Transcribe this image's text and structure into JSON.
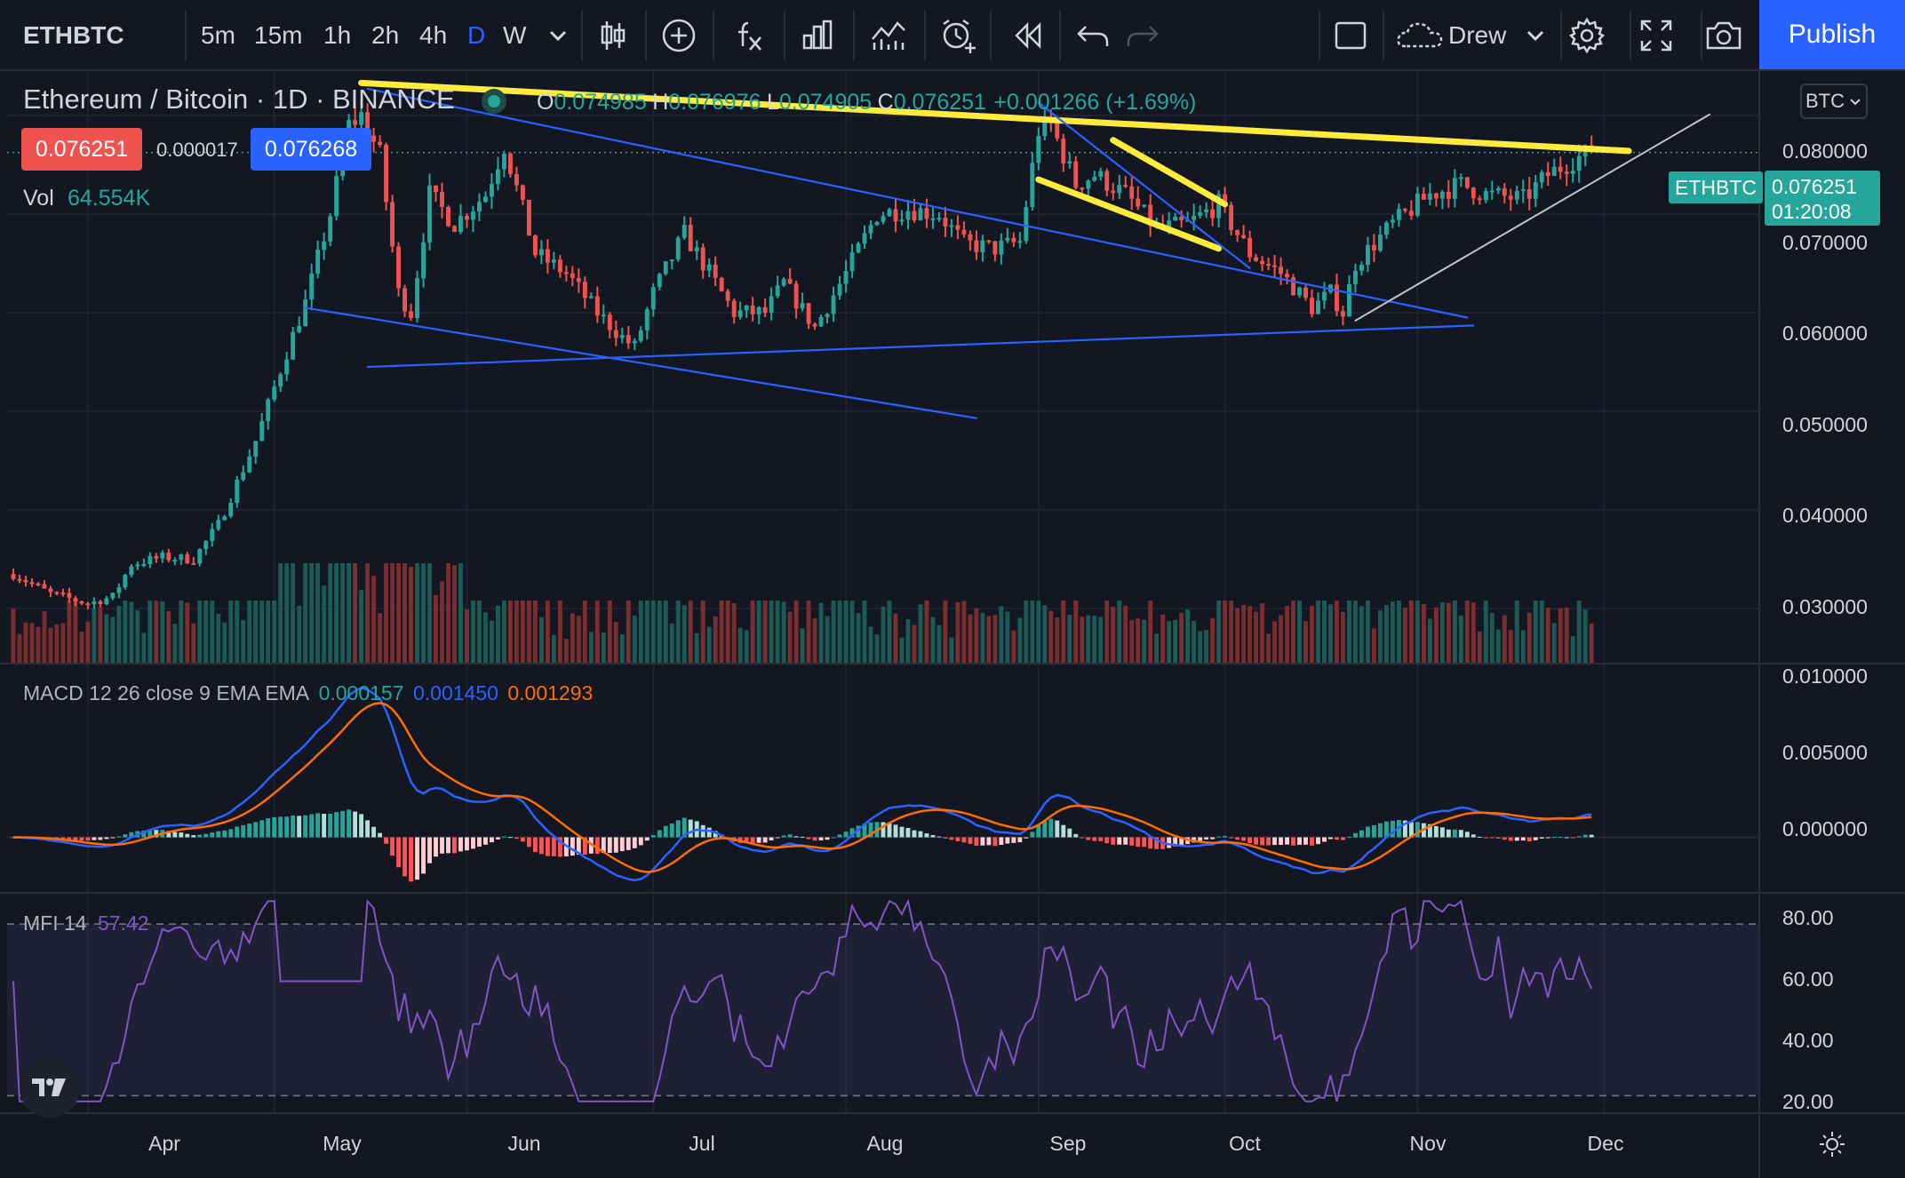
{
  "toolbar": {
    "symbol": "ETHBTC",
    "intervals": [
      "5m",
      "15m",
      "1h",
      "2h",
      "4h",
      "D",
      "W"
    ],
    "active_interval": "D",
    "drew_label": "Drew",
    "publish_label": "Publish"
  },
  "legend": {
    "title": "Ethereum / Bitcoin · 1D · BINANCE",
    "o_label": "O",
    "o_value": "0.074985",
    "h_label": "H",
    "h_value": "0.076976",
    "l_label": "L",
    "l_value": "0.074905",
    "c_label": "C",
    "c_value": "0.076251",
    "change": "+0.001266 (+1.69%)",
    "sell_price": "0.076251",
    "spread": "0.000017",
    "buy_price": "0.076268",
    "vol_label": "Vol",
    "vol_value": "64.554K"
  },
  "currency_selector": "BTC",
  "price_tag": {
    "symbol": "ETHBTC",
    "price": "0.076251",
    "countdown": "01:20:08"
  },
  "price_axis": [
    "0.080000",
    "0.070000",
    "0.060000",
    "0.050000",
    "0.040000",
    "0.030000"
  ],
  "macd": {
    "label": "MACD 12 26 close 9 EMA EMA",
    "hist": "0.000157",
    "macd": "0.001450",
    "signal": "0.001293",
    "axis": [
      "0.010000",
      "0.005000",
      "0.000000"
    ]
  },
  "mfi": {
    "label": "MFI 14",
    "value": "57.42",
    "axis": [
      "80.00",
      "60.00",
      "40.00",
      "20.00"
    ]
  },
  "time_axis": [
    "Apr",
    "May",
    "Jun",
    "Jul",
    "Aug",
    "Sep",
    "Oct",
    "Nov",
    "Dec"
  ],
  "colors": {
    "background": "#131722",
    "up": "#26a69a",
    "down": "#ef5350",
    "accent": "#2962ff",
    "trendline_yellow": "#ffeb3b",
    "trendline_blue": "#2962ff",
    "macd_line": "#2962ff",
    "signal_line": "#ff6d00",
    "mfi_line": "#7e57c2"
  },
  "chart_data": {
    "type": "candlestick",
    "anchors": [
      [
        "2021-03-20",
        0.0335
      ],
      [
        "2021-03-26",
        0.0315
      ],
      [
        "2021-04-01",
        0.0305
      ],
      [
        "2021-04-05",
        0.0312
      ],
      [
        "2021-04-08",
        0.0345
      ],
      [
        "2021-04-13",
        0.0352
      ],
      [
        "2021-04-18",
        0.035
      ],
      [
        "2021-04-22",
        0.0385
      ],
      [
        "2021-04-28",
        0.047
      ],
      [
        "2021-05-03",
        0.056
      ],
      [
        "2021-05-06",
        0.061
      ],
      [
        "2021-05-10",
        0.07
      ],
      [
        "2021-05-13",
        0.079
      ],
      [
        "2021-05-15",
        0.08
      ],
      [
        "2021-05-18",
        0.076
      ],
      [
        "2021-05-21",
        0.062
      ],
      [
        "2021-05-23",
        0.06
      ],
      [
        "2021-05-26",
        0.072
      ],
      [
        "2021-05-30",
        0.069
      ],
      [
        "2021-06-04",
        0.072
      ],
      [
        "2021-06-07",
        0.077
      ],
      [
        "2021-06-12",
        0.066
      ],
      [
        "2021-06-17",
        0.064
      ],
      [
        "2021-06-22",
        0.06
      ],
      [
        "2021-06-26",
        0.0575
      ],
      [
        "2021-06-28",
        0.0565
      ],
      [
        "2021-07-01",
        0.062
      ],
      [
        "2021-07-06",
        0.068
      ],
      [
        "2021-07-09",
        0.065
      ],
      [
        "2021-07-14",
        0.06
      ],
      [
        "2021-07-19",
        0.06
      ],
      [
        "2021-07-22",
        0.063
      ],
      [
        "2021-07-27",
        0.0585
      ],
      [
        "2021-08-01",
        0.064
      ],
      [
        "2021-08-06",
        0.07
      ],
      [
        "2021-08-11",
        0.0705
      ],
      [
        "2021-08-16",
        0.07
      ],
      [
        "2021-08-20",
        0.067
      ],
      [
        "2021-08-25",
        0.0665
      ],
      [
        "2021-08-29",
        0.0672
      ],
      [
        "2021-09-01",
        0.0785
      ],
      [
        "2021-09-03",
        0.079
      ],
      [
        "2021-09-07",
        0.073
      ],
      [
        "2021-09-10",
        0.074
      ],
      [
        "2021-09-15",
        0.072
      ],
      [
        "2021-09-20",
        0.0685
      ],
      [
        "2021-09-25",
        0.069
      ],
      [
        "2021-09-30",
        0.071
      ],
      [
        "2021-10-05",
        0.066
      ],
      [
        "2021-10-10",
        0.064
      ],
      [
        "2021-10-15",
        0.0605
      ],
      [
        "2021-10-18",
        0.062
      ],
      [
        "2021-10-20",
        0.06
      ],
      [
        "2021-10-22",
        0.065
      ],
      [
        "2021-10-28",
        0.069
      ],
      [
        "2021-11-03",
        0.072
      ],
      [
        "2021-11-08",
        0.073
      ],
      [
        "2021-11-12",
        0.072
      ],
      [
        "2021-11-18",
        0.0715
      ],
      [
        "2021-11-22",
        0.074
      ],
      [
        "2021-11-26",
        0.0755
      ],
      [
        "2021-11-29",
        0.0763
      ]
    ],
    "last_close": 0.076251,
    "y_range": [
      0.0245,
      0.0845
    ],
    "x_range": [
      "2021-03-19",
      "2021-12-26"
    ],
    "macd_range": [
      -0.0037,
      0.0117
    ],
    "mfi_range": [
      14.2,
      90.6
    ],
    "mfi_bands": [
      80,
      20
    ],
    "drawings": [
      {
        "color": "#ffeb3b",
        "from": [
          "2021-05-15",
          0.0833
        ],
        "to": [
          "2021-12-05",
          0.0764
        ]
      },
      {
        "color": "#ffeb3b",
        "from": [
          "2021-09-01",
          0.0735
        ],
        "to": [
          "2021-09-30",
          0.0665
        ]
      },
      {
        "color": "#ffeb3b",
        "from": [
          "2021-09-13",
          0.0775
        ],
        "to": [
          "2021-10-01",
          0.071
        ]
      },
      {
        "color": "#2962ff",
        "from": [
          "2021-05-16",
          0.0827
        ],
        "to": [
          "2021-11-09",
          0.0595
        ]
      },
      {
        "color": "#2962ff",
        "from": [
          "2021-05-06",
          0.0605
        ],
        "to": [
          "2021-08-22",
          0.0493
        ]
      },
      {
        "color": "#2962ff",
        "from": [
          "2021-05-16",
          0.0545
        ],
        "to": [
          "2021-11-10",
          0.0587
        ]
      },
      {
        "color": "#2962ff",
        "from": [
          "2021-09-01",
          0.0813
        ],
        "to": [
          "2021-10-05",
          0.0645
        ]
      },
      {
        "color": "#c0c4cc",
        "from": [
          "2021-10-22",
          0.0592
        ],
        "to": [
          "2021-12-18",
          0.0801
        ]
      }
    ]
  }
}
